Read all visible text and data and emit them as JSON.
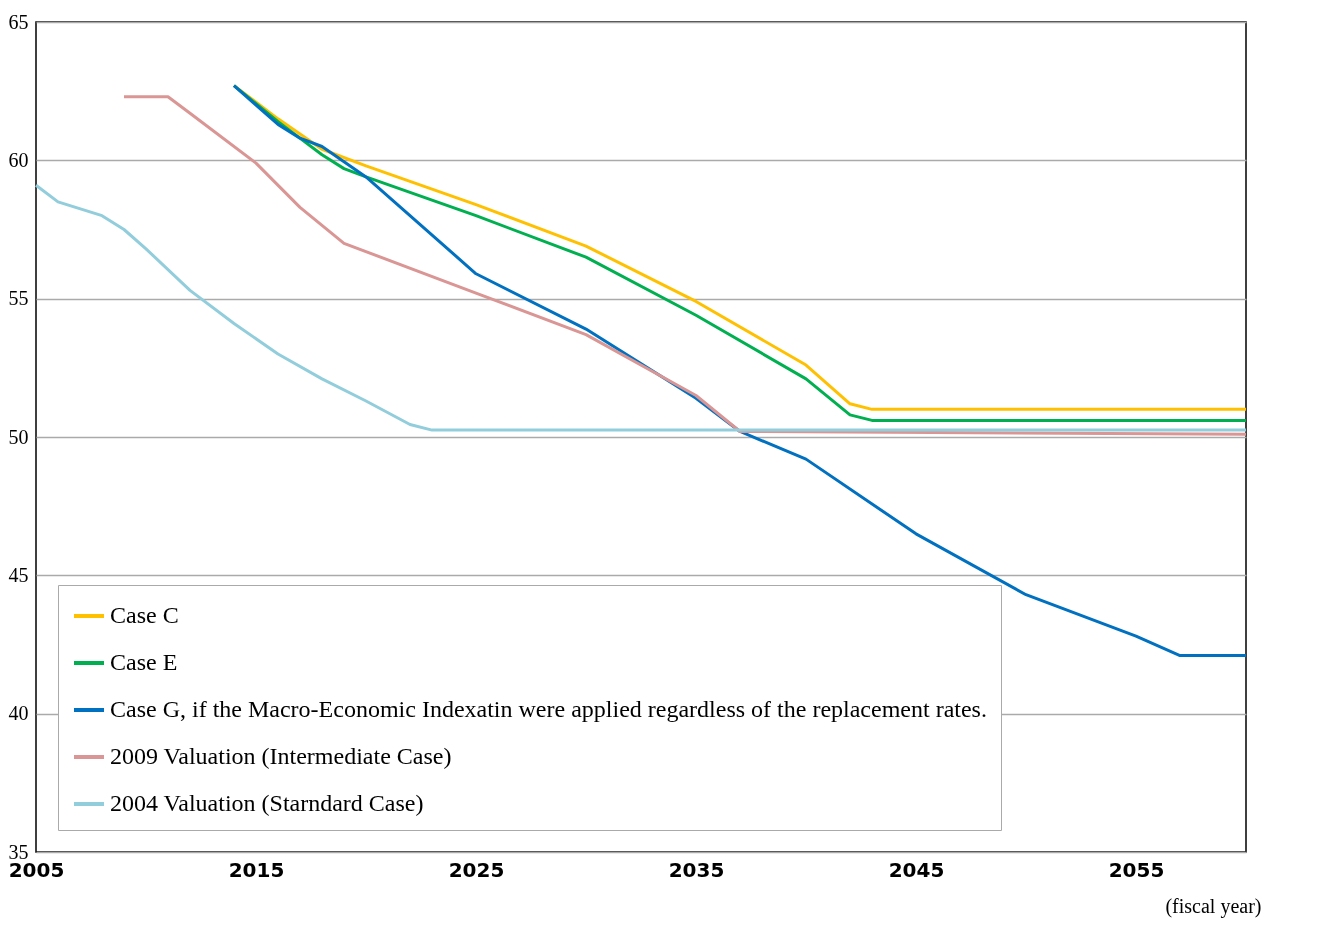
{
  "chart_data": {
    "type": "line",
    "xlabel": "(fiscal year)",
    "xlim": [
      2005,
      2060
    ],
    "xticks": [
      2005,
      2015,
      2025,
      2035,
      2045,
      2055
    ],
    "ylim": [
      35,
      65
    ],
    "yticks": [
      35,
      40,
      45,
      50,
      55,
      60,
      65
    ],
    "grid": "y",
    "legend": "bottom left",
    "line_style": "solid",
    "marker": "none",
    "series": [
      {
        "name": "Case C",
        "color": "#ffc000",
        "x": [
          2014,
          2016,
          2018,
          2020,
          2025,
          2030,
          2035,
          2040,
          2042,
          2043,
          2060
        ],
        "values": [
          62.7,
          61.5,
          60.4,
          59.8,
          58.4,
          56.9,
          54.9,
          52.6,
          51.2,
          51.0,
          51.0
        ]
      },
      {
        "name": "Case E",
        "color": "#00b050",
        "x": [
          2014,
          2016,
          2018,
          2019,
          2020,
          2025,
          2030,
          2035,
          2040,
          2042,
          2043,
          2060
        ],
        "values": [
          62.7,
          61.4,
          60.2,
          59.7,
          59.4,
          58.0,
          56.5,
          54.4,
          52.1,
          50.8,
          50.6,
          50.6
        ]
      },
      {
        "name": "Case G, if the Macro-Economic Indexatin were applied regardless of the replacement rates.",
        "color": "#0070c0",
        "x": [
          2014,
          2015,
          2016,
          2017,
          2018,
          2020,
          2025,
          2030,
          2035,
          2037,
          2040,
          2045,
          2050,
          2055,
          2057,
          2060
        ],
        "values": [
          62.7,
          62.0,
          61.3,
          60.8,
          60.5,
          59.4,
          55.9,
          53.9,
          51.4,
          50.2,
          49.2,
          46.5,
          44.3,
          42.8,
          42.1,
          42.1
        ]
      },
      {
        "name": "2009 Valuation (Intermediate Case)",
        "color": "#d99694",
        "x": [
          2009,
          2011,
          2012,
          2015,
          2017,
          2019,
          2025,
          2030,
          2035,
          2037,
          2060
        ],
        "values": [
          62.3,
          62.3,
          61.7,
          59.9,
          58.3,
          57.0,
          55.2,
          53.7,
          51.5,
          50.2,
          50.1
        ]
      },
      {
        "name": "2004 Valuation (Starndard Case)",
        "color": "#92cddc",
        "x": [
          2005,
          2006,
          2008,
          2009,
          2010,
          2012,
          2014,
          2016,
          2018,
          2020,
          2022,
          2023,
          2060
        ],
        "values": [
          59.1,
          58.5,
          58.0,
          57.5,
          56.8,
          55.3,
          54.1,
          53.0,
          52.1,
          51.3,
          50.45,
          50.25,
          50.25
        ]
      }
    ]
  }
}
